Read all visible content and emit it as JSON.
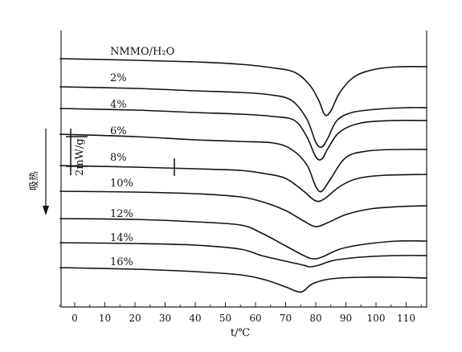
{
  "chart_data": {
    "type": "line",
    "xlabel": "t/℃",
    "ylabel": "吸热",
    "scale_bar_label": "2mW/g",
    "xlim": [
      -5,
      117
    ],
    "x_ticks": [
      0,
      10,
      20,
      30,
      40,
      50,
      60,
      70,
      80,
      90,
      100,
      110
    ],
    "grid": false,
    "legend": "none",
    "series": [
      {
        "name": "NMMO/H2O",
        "points": [
          [
            -5,
            73
          ],
          [
            20,
            75
          ],
          [
            40,
            77
          ],
          [
            55,
            80
          ],
          [
            65,
            84
          ],
          [
            73,
            90
          ],
          [
            78,
            106
          ],
          [
            81,
            125
          ],
          [
            83,
            143
          ],
          [
            85,
            138
          ],
          [
            88,
            115
          ],
          [
            93,
            95
          ],
          [
            100,
            86
          ],
          [
            108,
            83
          ],
          [
            117,
            83
          ]
        ]
      },
      {
        "name": "2%",
        "points": [
          [
            -5,
            108
          ],
          [
            20,
            110
          ],
          [
            40,
            113
          ],
          [
            55,
            115
          ],
          [
            65,
            118
          ],
          [
            72,
            125
          ],
          [
            77,
            148
          ],
          [
            80,
            177
          ],
          [
            82,
            183
          ],
          [
            84,
            172
          ],
          [
            87,
            150
          ],
          [
            92,
            140
          ],
          [
            100,
            136
          ],
          [
            110,
            134
          ],
          [
            117,
            134
          ]
        ]
      },
      {
        "name": "4%",
        "points": [
          [
            -5,
            135
          ],
          [
            20,
            137
          ],
          [
            40,
            140
          ],
          [
            55,
            142
          ],
          [
            66,
            145
          ],
          [
            73,
            150
          ],
          [
            77,
            170
          ],
          [
            80,
            195
          ],
          [
            82,
            198
          ],
          [
            84,
            185
          ],
          [
            88,
            164
          ],
          [
            95,
            153
          ],
          [
            105,
            150
          ],
          [
            117,
            150
          ]
        ]
      },
      {
        "name": "6%",
        "points": [
          [
            -5,
            167
          ],
          [
            20,
            170
          ],
          [
            40,
            174
          ],
          [
            55,
            176
          ],
          [
            66,
            178
          ],
          [
            72,
            186
          ],
          [
            77,
            205
          ],
          [
            80,
            232
          ],
          [
            82,
            238
          ],
          [
            85,
            222
          ],
          [
            90,
            196
          ],
          [
            97,
            188
          ],
          [
            107,
            186
          ],
          [
            117,
            186
          ]
        ]
      },
      {
        "name": "8%",
        "points": [
          [
            -5,
            206
          ],
          [
            20,
            208
          ],
          [
            40,
            210
          ],
          [
            55,
            212
          ],
          [
            63,
            216
          ],
          [
            70,
            222
          ],
          [
            76,
            238
          ],
          [
            80,
            250
          ],
          [
            83,
            247
          ],
          [
            88,
            232
          ],
          [
            94,
            222
          ],
          [
            103,
            218
          ],
          [
            117,
            217
          ]
        ]
      },
      {
        "name": "10%",
        "points": [
          [
            -5,
            238
          ],
          [
            20,
            239
          ],
          [
            40,
            241
          ],
          [
            55,
            245
          ],
          [
            63,
            252
          ],
          [
            70,
            262
          ],
          [
            76,
            275
          ],
          [
            80,
            282
          ],
          [
            84,
            277
          ],
          [
            90,
            267
          ],
          [
            98,
            260
          ],
          [
            108,
            257
          ],
          [
            117,
            256
          ]
        ]
      },
      {
        "name": "12%",
        "points": [
          [
            -5,
            272
          ],
          [
            20,
            273
          ],
          [
            40,
            276
          ],
          [
            55,
            280
          ],
          [
            62,
            290
          ],
          [
            70,
            306
          ],
          [
            76,
            318
          ],
          [
            79,
            322
          ],
          [
            82,
            320
          ],
          [
            88,
            310
          ],
          [
            96,
            304
          ],
          [
            107,
            300
          ],
          [
            117,
            300
          ]
        ]
      },
      {
        "name": "14%",
        "points": [
          [
            -5,
            302
          ],
          [
            20,
            303
          ],
          [
            40,
            305
          ],
          [
            55,
            310
          ],
          [
            62,
            318
          ],
          [
            70,
            325
          ],
          [
            76,
            330
          ],
          [
            78,
            332
          ],
          [
            81,
            330
          ],
          [
            86,
            324
          ],
          [
            95,
            320
          ],
          [
            107,
            318
          ],
          [
            117,
            318
          ]
        ]
      },
      {
        "name": "16%",
        "points": [
          [
            -5,
            333
          ],
          [
            20,
            335
          ],
          [
            40,
            338
          ],
          [
            55,
            342
          ],
          [
            63,
            348
          ],
          [
            70,
            357
          ],
          [
            74,
            363
          ],
          [
            76,
            362
          ],
          [
            79,
            353
          ],
          [
            85,
            347
          ],
          [
            95,
            345
          ],
          [
            107,
            345
          ],
          [
            117,
            346
          ]
        ]
      }
    ],
    "labels": [
      "NMMO/H₂O",
      "2%",
      "4%",
      "6%",
      "8%",
      "10%",
      "12%",
      "14%",
      "16%"
    ]
  }
}
